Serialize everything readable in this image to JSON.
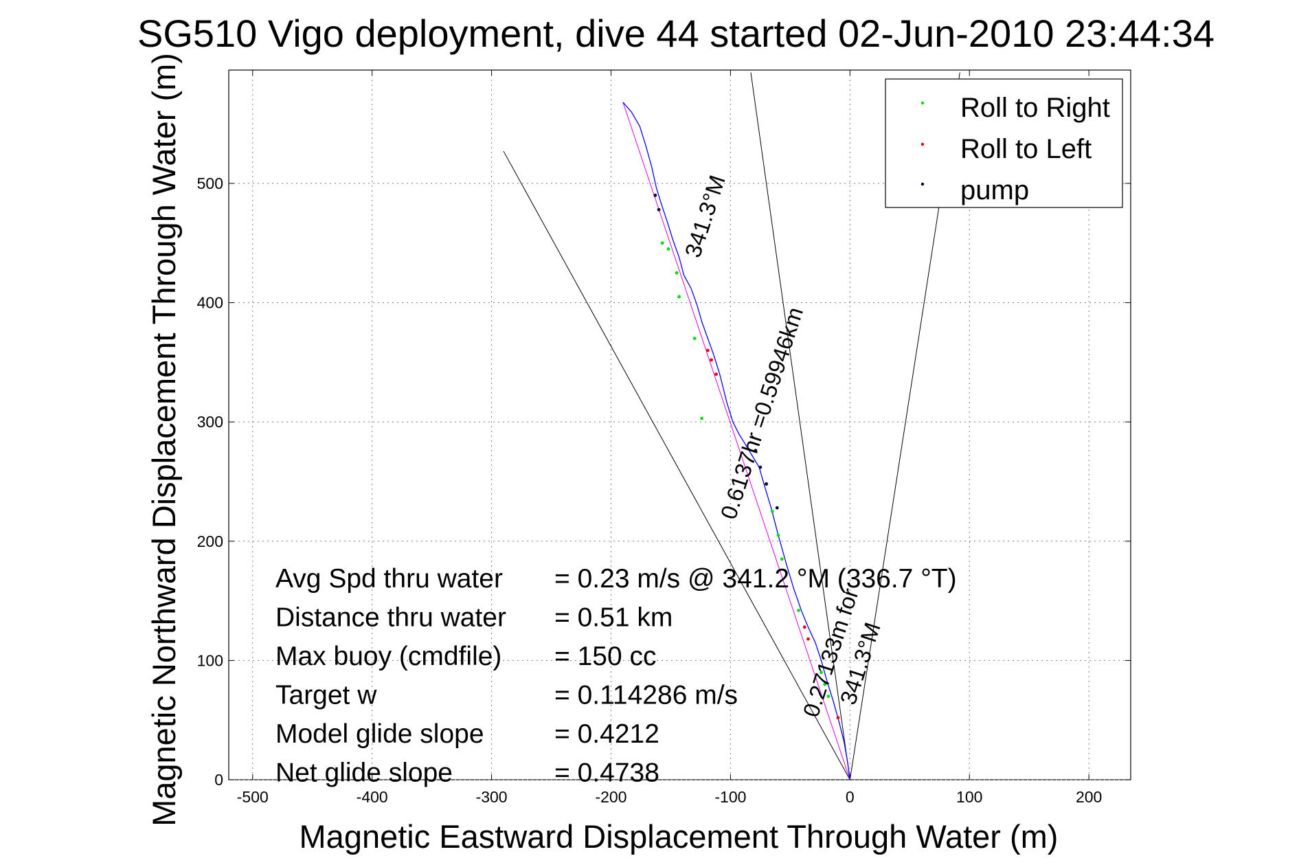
{
  "chart_data": {
    "type": "line",
    "title": "SG510 Vigo deployment, dive 44 started 02-Jun-2010 23:44:34",
    "xlabel": "Magnetic Eastward Displacement Through Water (m)",
    "ylabel": "Magnetic Northward Displacement Through Water (m)",
    "xlim": [
      -520,
      235
    ],
    "ylim": [
      0,
      595
    ],
    "xticks": [
      "-500",
      "-400",
      "-300",
      "-200",
      "-100",
      "0",
      "100",
      "200"
    ],
    "yticks": [
      "0",
      "100",
      "200",
      "300",
      "400",
      "500"
    ],
    "grid": true,
    "legend_position": "top-right",
    "legend": [
      {
        "label": "Roll to Right",
        "color": "#00dd00"
      },
      {
        "label": "Roll to Left",
        "color": "#ee0000"
      },
      {
        "label": "pump",
        "color": "#000033"
      }
    ],
    "series": [
      {
        "kind": "track",
        "color": "#0000ff",
        "x": [
          0,
          -2,
          -5,
          -9,
          -14,
          -19,
          -24,
          -29,
          -35,
          -40,
          -47,
          -53,
          -60,
          -66,
          -72,
          -76,
          -82,
          -88,
          -93,
          -98,
          -103,
          -109,
          -114,
          -119,
          -124,
          -128,
          -133,
          -139,
          -143,
          -148,
          -153,
          -157,
          -162,
          -166,
          -171,
          -176,
          -183,
          -190
        ],
        "y": [
          0,
          15,
          32,
          48,
          66,
          82,
          100,
          115,
          128,
          140,
          160,
          180,
          205,
          228,
          248,
          262,
          272,
          282,
          290,
          300,
          316,
          340,
          356,
          370,
          384,
          398,
          412,
          423,
          438,
          452,
          468,
          480,
          496,
          514,
          532,
          548,
          560,
          568
        ]
      },
      {
        "kind": "glide",
        "color": "#dd00dd",
        "x": [
          0,
          -190
        ],
        "y": [
          0,
          568
        ]
      },
      {
        "kind": "reference",
        "color": "#000000",
        "x": [
          -290,
          0,
          92
        ],
        "y": [
          527,
          0,
          593
        ]
      },
      {
        "kind": "reference",
        "color": "#000000",
        "x": [
          -83,
          0
        ],
        "y": [
          593,
          0
        ]
      }
    ],
    "markers": {
      "roll_right": {
        "x": [
          -18,
          -21,
          -24,
          -43,
          -57,
          -60,
          -65,
          -70,
          -124,
          -130,
          -143,
          -145,
          -152,
          -157
        ],
        "y": [
          70,
          80,
          90,
          142,
          185,
          205,
          225,
          248,
          303,
          370,
          405,
          425,
          445,
          450
        ]
      },
      "roll_left": {
        "x": [
          -10,
          -35,
          -38,
          -112,
          -116,
          -119
        ],
        "y": [
          52,
          118,
          128,
          340,
          352,
          360
        ]
      },
      "pump": {
        "x": [
          -61,
          -70,
          -75,
          -79,
          -160,
          -163
        ],
        "y": [
          228,
          248,
          262,
          276,
          478,
          490
        ]
      }
    },
    "annotations": {
      "heading_top": "341.3°M",
      "heading_bottom": "341.3°M",
      "leg_long": "0.6137hr =0.59946km",
      "leg_short": "0.27133m for",
      "stats": [
        {
          "label": "Avg Spd thru water",
          "value": "=  0.23 m/s @ 341.2 °M (336.7 °T)"
        },
        {
          "label": "Distance thru water",
          "value": "=  0.51 km"
        },
        {
          "label": "Max buoy (cmdfile)",
          "value": "= 150 cc"
        },
        {
          "label": "Target w",
          "value": "= 0.114286 m/s"
        },
        {
          "label": "Model glide slope",
          "value": "= 0.4212"
        },
        {
          "label": "Net glide slope",
          "value": "= 0.4738"
        }
      ]
    }
  }
}
